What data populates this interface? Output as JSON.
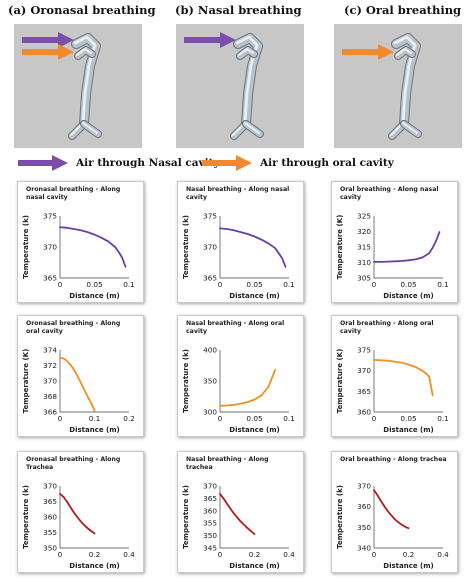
{
  "columns": [
    {
      "title": "(a) Oronasal breathing",
      "arrows": [
        "nasal",
        "oral"
      ]
    },
    {
      "title": "(b) Nasal breathing",
      "arrows": [
        "nasal"
      ]
    },
    {
      "title": "(c) Oral breathing",
      "arrows": [
        "oral"
      ]
    }
  ],
  "legend": {
    "nasal": {
      "label": "Air through Nasal cavity",
      "color": "#7b4fa8"
    },
    "oral": {
      "label": "Air through oral cavity",
      "color": "#f08a2c"
    }
  },
  "colors": {
    "model_bg": "#c7c7c7",
    "purple_curve": "#6a3ea6",
    "orange_curve": "#f0901e",
    "red_curve": "#b01c1c"
  },
  "chart_data": [
    {
      "type": "line",
      "title": "Oronasal breathing - Along nasal cavity",
      "xlabel": "Distance (m)",
      "ylabel": "Temperature (k)",
      "xlim": [
        0,
        0.1
      ],
      "ylim": [
        365,
        375
      ],
      "xticks": [
        "0",
        "0.05",
        "0.1"
      ],
      "yticks": [
        "365",
        "370",
        "375"
      ],
      "series": [
        {
          "color": "#6a3ea6",
          "x": [
            0,
            0.01,
            0.02,
            0.03,
            0.04,
            0.05,
            0.06,
            0.07,
            0.08,
            0.085,
            0.09,
            0.095
          ],
          "y": [
            373.2,
            373.1,
            372.9,
            372.7,
            372.4,
            372.0,
            371.5,
            370.9,
            370.0,
            369.2,
            368.3,
            366.8
          ]
        }
      ]
    },
    {
      "type": "line",
      "title": "Nasal breathing - Along nasal cavity",
      "xlabel": "Distance (m)",
      "ylabel": "Temperature (k)",
      "xlim": [
        0,
        0.1
      ],
      "ylim": [
        365,
        375
      ],
      "xticks": [
        "0",
        "0.05",
        "0.1"
      ],
      "yticks": [
        "365",
        "370",
        "375"
      ],
      "series": [
        {
          "color": "#6a3ea6",
          "x": [
            0,
            0.01,
            0.02,
            0.03,
            0.04,
            0.05,
            0.06,
            0.07,
            0.08,
            0.085,
            0.09,
            0.095
          ],
          "y": [
            373.0,
            372.9,
            372.7,
            372.4,
            372.1,
            371.7,
            371.2,
            370.6,
            369.8,
            369.0,
            368.2,
            366.8
          ]
        }
      ]
    },
    {
      "type": "line",
      "title": "Oral breathing - Along nasal cavity",
      "xlabel": "Distance (m)",
      "ylabel": "Temperature (K)",
      "xlim": [
        0,
        0.1
      ],
      "ylim": [
        305,
        325
      ],
      "xticks": [
        "0",
        "0.05",
        "0.1"
      ],
      "yticks": [
        "305",
        "310",
        "315",
        "320",
        "325"
      ],
      "series": [
        {
          "color": "#6a3ea6",
          "x": [
            0,
            0.01,
            0.02,
            0.03,
            0.04,
            0.05,
            0.06,
            0.07,
            0.08,
            0.085,
            0.09,
            0.095
          ],
          "y": [
            310.2,
            310.2,
            310.3,
            310.4,
            310.5,
            310.7,
            311.0,
            311.6,
            313.0,
            314.8,
            317.0,
            319.8
          ]
        }
      ]
    },
    {
      "type": "line",
      "title": "Oronasal breathing - Along oral cavity",
      "xlabel": "Distance (m)",
      "ylabel": "Temperature (K)",
      "xlim": [
        0,
        0.2
      ],
      "ylim": [
        366,
        374
      ],
      "xticks": [
        "0",
        "0.1",
        "0.2"
      ],
      "yticks": [
        "366",
        "368",
        "370",
        "372",
        "374"
      ],
      "series": [
        {
          "color": "#f0901e",
          "x": [
            0,
            0.01,
            0.02,
            0.03,
            0.04,
            0.05,
            0.06,
            0.07,
            0.08,
            0.09,
            0.1
          ],
          "y": [
            373.0,
            372.9,
            372.6,
            372.1,
            371.5,
            370.7,
            369.8,
            368.9,
            368.0,
            367.2,
            366.2
          ]
        }
      ]
    },
    {
      "type": "line",
      "title": "Nasal breathing - Along oral cavity",
      "xlabel": "Distance (m)",
      "ylabel": "Temperature (k)",
      "xlim": [
        0,
        0.1
      ],
      "ylim": [
        300,
        400
      ],
      "xticks": [
        "0",
        "0.05",
        "0.1"
      ],
      "yticks": [
        "300",
        "350",
        "400"
      ],
      "series": [
        {
          "color": "#f0901e",
          "x": [
            0,
            0.01,
            0.02,
            0.03,
            0.04,
            0.05,
            0.06,
            0.07,
            0.08
          ],
          "y": [
            310,
            310.5,
            311.5,
            313.5,
            316,
            320,
            327,
            340,
            368
          ]
        }
      ]
    },
    {
      "type": "line",
      "title": "Oral breathing - Along oral cavity",
      "xlabel": "Distance (m)",
      "ylabel": "Temperature (K)",
      "xlim": [
        0,
        0.1
      ],
      "ylim": [
        360,
        375
      ],
      "xticks": [
        "0",
        "0.05",
        "0.1"
      ],
      "yticks": [
        "360",
        "365",
        "370",
        "375"
      ],
      "series": [
        {
          "color": "#f0901e",
          "x": [
            0,
            0.01,
            0.02,
            0.03,
            0.04,
            0.05,
            0.06,
            0.07,
            0.075,
            0.08,
            0.085
          ],
          "y": [
            372.6,
            372.5,
            372.4,
            372.2,
            371.9,
            371.5,
            370.9,
            370.0,
            369.4,
            368.5,
            364.0
          ]
        }
      ]
    },
    {
      "type": "line",
      "title": "Oronasal breathing - Along Trachea",
      "xlabel": "Distance (m)",
      "ylabel": "Temperature (k)",
      "xlim": [
        0,
        0.4
      ],
      "ylim": [
        350,
        370
      ],
      "xticks": [
        "0",
        "0.2",
        "0.4"
      ],
      "yticks": [
        "350",
        "355",
        "360",
        "365",
        "370"
      ],
      "series": [
        {
          "color": "#b01c1c",
          "x": [
            0,
            0.02,
            0.04,
            0.06,
            0.08,
            0.1,
            0.12,
            0.14,
            0.16,
            0.18,
            0.2
          ],
          "y": [
            367.5,
            366.5,
            365.0,
            363.2,
            361.5,
            360.0,
            358.6,
            357.4,
            356.4,
            355.5,
            354.7
          ]
        }
      ]
    },
    {
      "type": "line",
      "title": "Nasal breathing - Along trachea",
      "xlabel": "Distance (m)",
      "ylabel": "Temperature (k)",
      "xlim": [
        0,
        0.4
      ],
      "ylim": [
        345,
        370
      ],
      "xticks": [
        "0",
        "0.2",
        "0.4"
      ],
      "yticks": [
        "345",
        "350",
        "355",
        "360",
        "365",
        "370"
      ],
      "series": [
        {
          "color": "#b01c1c",
          "x": [
            0,
            0.02,
            0.04,
            0.06,
            0.08,
            0.1,
            0.12,
            0.14,
            0.16,
            0.18,
            0.2
          ],
          "y": [
            366.8,
            365.0,
            362.9,
            360.9,
            359.0,
            357.3,
            355.7,
            354.3,
            353.0,
            351.8,
            350.6
          ]
        }
      ]
    },
    {
      "type": "line",
      "title": "Oral breathing - Along trachea",
      "xlabel": "Distance (m)",
      "ylabel": "Temperature (k)",
      "xlim": [
        0,
        0.4
      ],
      "ylim": [
        340,
        370
      ],
      "xticks": [
        "0",
        "0.2",
        "0.4"
      ],
      "yticks": [
        "340",
        "350",
        "360",
        "370"
      ],
      "series": [
        {
          "color": "#b01c1c",
          "x": [
            0,
            0.02,
            0.04,
            0.06,
            0.08,
            0.1,
            0.12,
            0.14,
            0.16,
            0.18,
            0.2
          ],
          "y": [
            368.0,
            365.5,
            362.8,
            360.2,
            357.8,
            355.8,
            354.0,
            352.5,
            351.3,
            350.3,
            349.6
          ]
        }
      ]
    }
  ]
}
